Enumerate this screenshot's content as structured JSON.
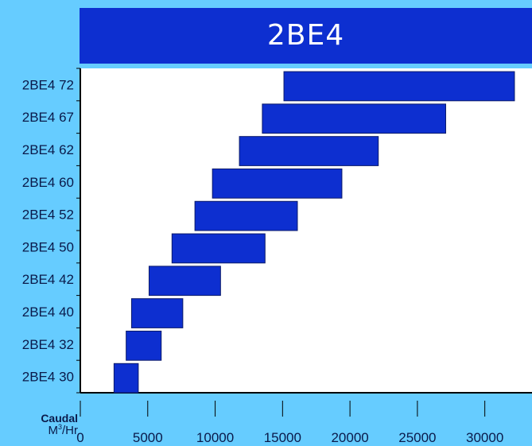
{
  "chart_data": {
    "type": "bar",
    "orientation": "horizontal-range",
    "title": "2BE4",
    "xlabel": "Caudal",
    "xunit_base": "M",
    "xunit_sup": "3",
    "xunit_tail": "/Hr",
    "xlim": [
      0,
      33500
    ],
    "xticks": [
      0,
      5000,
      10000,
      15000,
      20000,
      25000,
      30000
    ],
    "categories": [
      "2BE4 72",
      "2BE4 67",
      "2BE4 62",
      "2BE4 60",
      "2BE4 52",
      "2BE4 50",
      "2BE4 42",
      "2BE4 40",
      "2BE4 32",
      "2BE4 30"
    ],
    "ranges": [
      [
        15100,
        32200
      ],
      [
        13500,
        27100
      ],
      [
        11800,
        22100
      ],
      [
        9800,
        19400
      ],
      [
        8500,
        16100
      ],
      [
        6800,
        13700
      ],
      [
        5100,
        10400
      ],
      [
        3800,
        7600
      ],
      [
        3400,
        6000
      ],
      [
        2500,
        4300
      ]
    ],
    "bar_color": "#0d2fd0",
    "grid": false
  }
}
